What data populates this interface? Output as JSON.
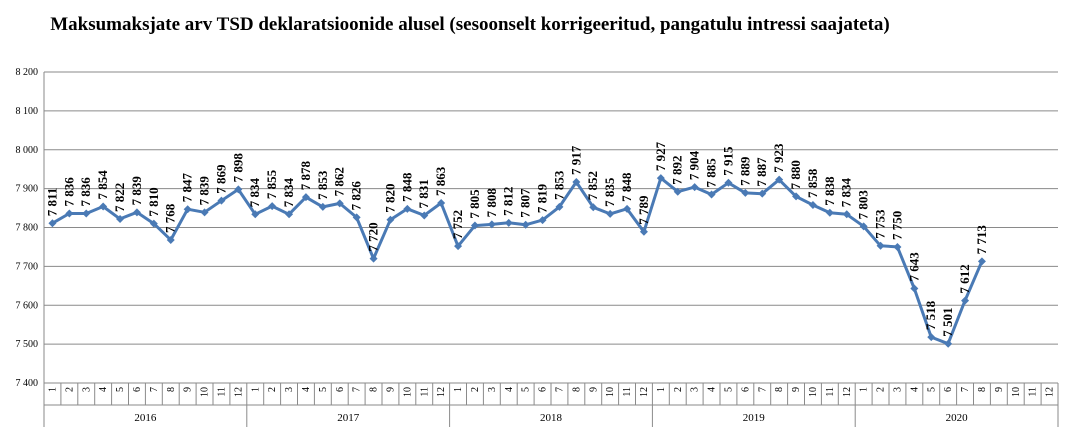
{
  "chart_data": {
    "type": "line",
    "title": "Maksumaksjate arv TSD deklaratsioonide alusel (sesoonselt korrigeeritud, pangatulu intressi saajateta)",
    "ylim": [
      7400,
      8200
    ],
    "yticks": [
      7400,
      7500,
      7600,
      7700,
      7800,
      7900,
      8000,
      8100,
      8200
    ],
    "ytick_labels": [
      "7 400",
      "7 500",
      "7 600",
      "7 700",
      "7 800",
      "7 900",
      "8 000",
      "8 100",
      "8 200"
    ],
    "grid": true,
    "color": "#4a7ab5",
    "years": [
      "2016",
      "2017",
      "2018",
      "2019",
      "2020"
    ],
    "months": [
      "1",
      "2",
      "3",
      "4",
      "5",
      "6",
      "7",
      "8",
      "9",
      "10",
      "11",
      "12"
    ],
    "series": [
      {
        "values": [
          7811,
          7836,
          7836,
          7854,
          7822,
          7839,
          7810,
          7768,
          7847,
          7839,
          7869,
          7898,
          7834,
          7855,
          7834,
          7878,
          7853,
          7862,
          7826,
          7720,
          7820,
          7848,
          7831,
          7863,
          7752,
          7805,
          7808,
          7812,
          7807,
          7819,
          7853,
          7917,
          7852,
          7835,
          7848,
          7789,
          7927,
          7892,
          7904,
          7885,
          7915,
          7889,
          7887,
          7923,
          7880,
          7858,
          7838,
          7834,
          7803,
          7753,
          7750,
          7643,
          7518,
          7501,
          7612,
          7713
        ],
        "labels": [
          "7 811",
          "7 836",
          "7 836",
          "7 854",
          "7 822",
          "7 839",
          "7 810",
          "7 768",
          "7 847",
          "7 839",
          "7 869",
          "7 898",
          "7 834",
          "7 855",
          "7 834",
          "7 878",
          "7 853",
          "7 862",
          "7 826",
          "7 720",
          "7 820",
          "7 848",
          "7 831",
          "7 863",
          "7 752",
          "7 805",
          "7 808",
          "7 812",
          "7 807",
          "7 819",
          "7 853",
          "7 917",
          "7 852",
          "7 835",
          "7 848",
          "7 789",
          "7 927",
          "7 892",
          "7 904",
          "7 885",
          "7 915",
          "7 889",
          "7 887",
          "7 923",
          "7 880",
          "7 858",
          "7 838",
          "7 834",
          "7 803",
          "7 753",
          "7 750",
          "7 643",
          "7 518",
          "7 501",
          "7 612",
          "7 713"
        ]
      }
    ]
  }
}
